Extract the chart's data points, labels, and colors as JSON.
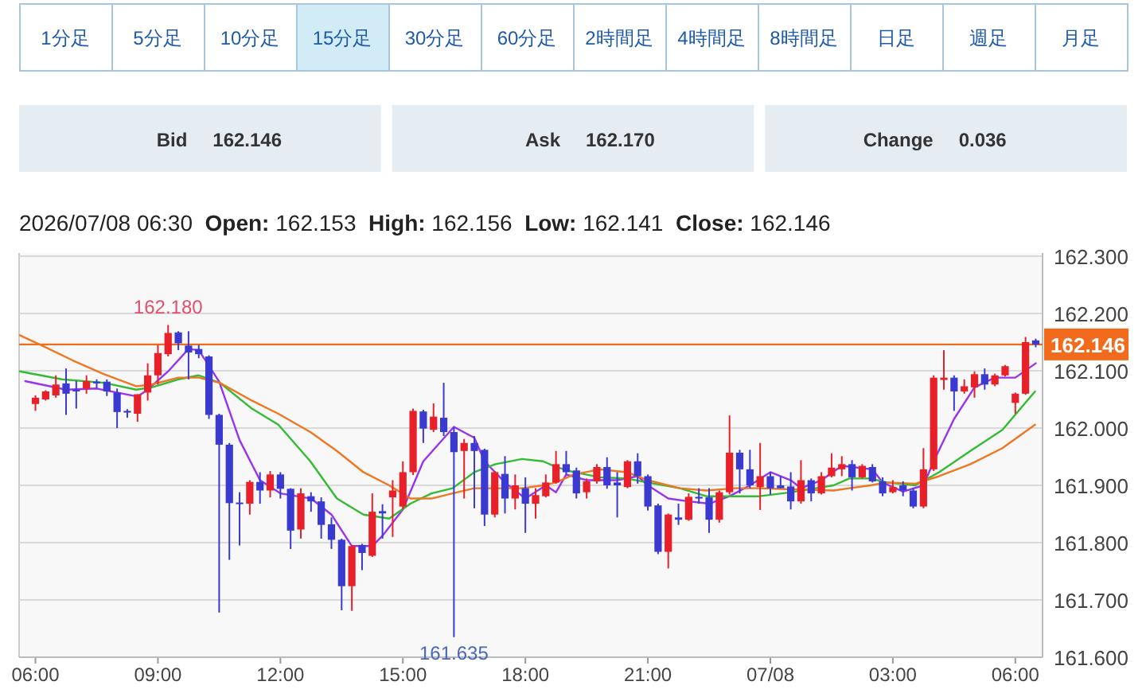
{
  "chart_data": {
    "type": "candlestick",
    "title": "2026/07/08 06:30  **Open:** 162.153  **High:** 162.156  **Low:** 162.141  **Close:** 162.146",
    "annotations": [
      "1分足",
      "5分足",
      "10分足",
      "15分足",
      "30分足",
      "60分足",
      "2時間足",
      "4時間足",
      "8時間足",
      "日足",
      "週足",
      "月足",
      "Bid",
      "162.146",
      "Ask",
      "162.170",
      "Change",
      "0.036",
      {
        "text": "162.180",
        "x": "2026-07-07T09:15",
        "y": 162.18
      },
      {
        "text": "161.635",
        "x": "2026-07-07T16:15",
        "y": 161.635
      }
    ],
    "x": [
      "2026-07-07T06:00",
      "2026-07-07T06:15",
      "2026-07-07T06:30",
      "2026-07-07T06:45",
      "2026-07-07T07:00",
      "2026-07-07T07:15",
      "2026-07-07T07:30",
      "2026-07-07T07:45",
      "2026-07-07T08:00",
      "2026-07-07T08:15",
      "2026-07-07T08:30",
      "2026-07-07T08:45",
      "2026-07-07T09:00",
      "2026-07-07T09:15",
      "2026-07-07T09:30",
      "2026-07-07T09:45",
      "2026-07-07T10:00",
      "2026-07-07T10:15",
      "2026-07-07T10:30",
      "2026-07-07T10:45",
      "2026-07-07T11:00",
      "2026-07-07T11:15",
      "2026-07-07T11:30",
      "2026-07-07T11:45",
      "2026-07-07T12:00",
      "2026-07-07T12:15",
      "2026-07-07T12:30",
      "2026-07-07T12:45",
      "2026-07-07T13:00",
      "2026-07-07T13:15",
      "2026-07-07T13:30",
      "2026-07-07T13:45",
      "2026-07-07T14:00",
      "2026-07-07T14:15",
      "2026-07-07T14:30",
      "2026-07-07T14:45",
      "2026-07-07T15:00",
      "2026-07-07T15:15",
      "2026-07-07T15:30",
      "2026-07-07T15:45",
      "2026-07-07T16:00",
      "2026-07-07T16:15",
      "2026-07-07T16:30",
      "2026-07-07T16:45",
      "2026-07-07T17:00",
      "2026-07-07T17:15",
      "2026-07-07T17:30",
      "2026-07-07T17:45",
      "2026-07-07T18:00",
      "2026-07-07T18:15",
      "2026-07-07T18:30",
      "2026-07-07T18:45",
      "2026-07-07T19:00",
      "2026-07-07T19:15",
      "2026-07-07T19:30",
      "2026-07-07T19:45",
      "2026-07-07T20:00",
      "2026-07-07T20:15",
      "2026-07-07T20:30",
      "2026-07-07T20:45",
      "2026-07-07T21:00",
      "2026-07-07T21:15",
      "2026-07-07T21:30",
      "2026-07-07T21:45",
      "2026-07-07T22:00",
      "2026-07-07T22:15",
      "2026-07-07T22:30",
      "2026-07-07T22:45",
      "2026-07-07T23:00",
      "2026-07-07T23:15",
      "2026-07-07T23:30",
      "2026-07-07T23:45",
      "2026-07-08T00:00",
      "2026-07-08T00:15",
      "2026-07-08T00:30",
      "2026-07-08T00:45",
      "2026-07-08T01:00",
      "2026-07-08T01:15",
      "2026-07-08T01:30",
      "2026-07-08T01:45",
      "2026-07-08T02:00",
      "2026-07-08T02:15",
      "2026-07-08T02:30",
      "2026-07-08T02:45",
      "2026-07-08T03:00",
      "2026-07-08T03:15",
      "2026-07-08T03:30",
      "2026-07-08T03:45",
      "2026-07-08T04:00",
      "2026-07-08T04:15",
      "2026-07-08T04:30",
      "2026-07-08T04:45",
      "2026-07-08T05:00",
      "2026-07-08T05:15",
      "2026-07-08T05:30",
      "2026-07-08T05:45",
      "2026-07-08T06:00",
      "2026-07-08T06:15",
      "2026-07-08T06:30"
    ],
    "ohlc": [
      [
        162.042,
        162.057,
        162.03,
        162.053
      ],
      [
        162.05,
        162.066,
        162.048,
        162.064
      ],
      [
        162.057,
        162.092,
        162.053,
        162.076
      ],
      [
        162.078,
        162.104,
        162.023,
        162.06
      ],
      [
        162.067,
        162.082,
        162.034,
        162.064
      ],
      [
        162.069,
        162.092,
        162.06,
        162.082
      ],
      [
        162.081,
        162.085,
        162.069,
        162.078
      ],
      [
        162.081,
        162.085,
        162.056,
        162.064
      ],
      [
        162.062,
        162.069,
        162.0,
        162.028
      ],
      [
        162.03,
        162.033,
        162.018,
        162.027
      ],
      [
        162.025,
        162.059,
        162.011,
        162.059
      ],
      [
        162.062,
        162.113,
        162.048,
        162.092
      ],
      [
        162.092,
        162.145,
        162.076,
        162.131
      ],
      [
        162.129,
        162.18,
        162.125,
        162.166
      ],
      [
        162.167,
        162.169,
        162.136,
        162.148
      ],
      [
        162.144,
        162.169,
        162.085,
        162.132
      ],
      [
        162.138,
        162.145,
        162.122,
        162.129
      ],
      [
        162.125,
        162.127,
        162.016,
        162.023
      ],
      [
        162.023,
        162.025,
        161.678,
        161.971
      ],
      [
        161.971,
        161.974,
        161.77,
        161.869
      ],
      [
        161.87,
        161.888,
        161.795,
        161.869
      ],
      [
        161.868,
        161.909,
        161.849,
        161.906
      ],
      [
        161.906,
        161.923,
        161.868,
        161.891
      ],
      [
        161.891,
        161.925,
        161.879,
        161.919
      ],
      [
        161.919,
        161.923,
        161.877,
        161.894
      ],
      [
        161.894,
        161.895,
        161.789,
        161.821
      ],
      [
        161.823,
        161.895,
        161.807,
        161.886
      ],
      [
        161.881,
        161.888,
        161.854,
        161.872
      ],
      [
        161.872,
        161.879,
        161.807,
        161.831
      ],
      [
        161.832,
        161.844,
        161.789,
        161.805
      ],
      [
        161.805,
        161.807,
        161.682,
        161.724
      ],
      [
        161.724,
        161.796,
        161.681,
        161.794
      ],
      [
        161.796,
        161.798,
        161.752,
        161.782
      ],
      [
        161.777,
        161.886,
        161.775,
        161.854
      ],
      [
        161.855,
        161.867,
        161.807,
        161.851
      ],
      [
        161.879,
        161.909,
        161.81,
        161.891
      ],
      [
        161.863,
        161.942,
        161.858,
        161.923
      ],
      [
        161.923,
        162.034,
        161.918,
        162.03
      ],
      [
        162.029,
        162.032,
        161.974,
        161.999
      ],
      [
        161.997,
        162.043,
        161.993,
        162.02
      ],
      [
        162.018,
        162.079,
        161.986,
        161.993
      ],
      [
        161.993,
        162.002,
        161.635,
        161.958
      ],
      [
        161.96,
        161.981,
        161.877,
        161.974
      ],
      [
        161.974,
        161.986,
        161.86,
        161.96
      ],
      [
        161.962,
        161.964,
        161.829,
        161.849
      ],
      [
        161.849,
        161.925,
        161.844,
        161.923
      ],
      [
        161.92,
        161.951,
        161.851,
        161.877
      ],
      [
        161.877,
        161.919,
        161.858,
        161.9
      ],
      [
        161.895,
        161.914,
        161.817,
        161.868
      ],
      [
        161.868,
        161.895,
        161.842,
        161.883
      ],
      [
        161.881,
        161.919,
        161.879,
        161.905
      ],
      [
        161.905,
        161.96,
        161.903,
        161.937
      ],
      [
        161.937,
        161.96,
        161.919,
        161.923
      ],
      [
        161.926,
        161.931,
        161.877,
        161.886
      ],
      [
        161.888,
        161.912,
        161.877,
        161.907
      ],
      [
        161.907,
        161.937,
        161.903,
        161.932
      ],
      [
        161.932,
        161.949,
        161.894,
        161.9
      ],
      [
        161.905,
        161.923,
        161.844,
        161.9
      ],
      [
        161.897,
        161.944,
        161.895,
        161.942
      ],
      [
        161.942,
        161.956,
        161.903,
        161.916
      ],
      [
        161.916,
        161.919,
        161.856,
        161.863
      ],
      [
        161.865,
        161.868,
        161.78,
        161.784
      ],
      [
        161.784,
        161.851,
        161.755,
        161.849
      ],
      [
        161.844,
        161.868,
        161.831,
        161.84
      ],
      [
        161.84,
        161.886,
        161.838,
        161.88
      ],
      [
        161.88,
        161.895,
        161.868,
        161.877
      ],
      [
        161.879,
        161.895,
        161.817,
        161.84
      ],
      [
        161.84,
        161.891,
        161.835,
        161.888
      ],
      [
        161.888,
        162.022,
        161.884,
        161.957
      ],
      [
        161.957,
        161.962,
        161.886,
        161.928
      ],
      [
        161.928,
        161.962,
        161.895,
        161.9
      ],
      [
        161.897,
        161.974,
        161.857,
        161.916
      ],
      [
        161.916,
        161.923,
        161.884,
        161.895
      ],
      [
        161.9,
        161.916,
        161.895,
        161.895
      ],
      [
        161.898,
        161.923,
        161.858,
        161.872
      ],
      [
        161.872,
        161.944,
        161.868,
        161.909
      ],
      [
        161.909,
        161.912,
        161.872,
        161.886
      ],
      [
        161.886,
        161.923,
        161.884,
        161.916
      ],
      [
        161.916,
        161.956,
        161.914,
        161.931
      ],
      [
        161.928,
        161.951,
        161.916,
        161.937
      ],
      [
        161.937,
        161.944,
        161.891,
        161.914
      ],
      [
        161.914,
        161.937,
        161.912,
        161.934
      ],
      [
        161.932,
        161.937,
        161.905,
        161.907
      ],
      [
        161.907,
        161.914,
        161.881,
        161.886
      ],
      [
        161.888,
        161.909,
        161.886,
        161.897
      ],
      [
        161.9,
        161.907,
        161.881,
        161.891
      ],
      [
        161.891,
        161.895,
        161.86,
        161.863
      ],
      [
        161.863,
        161.965,
        161.86,
        161.928
      ],
      [
        161.928,
        162.092,
        161.925,
        162.088
      ],
      [
        162.084,
        162.136,
        162.067,
        162.088
      ],
      [
        162.088,
        162.092,
        162.03,
        162.064
      ],
      [
        162.064,
        162.085,
        162.06,
        162.073
      ],
      [
        162.071,
        162.099,
        162.053,
        162.094
      ],
      [
        162.094,
        162.104,
        162.067,
        162.076
      ],
      [
        162.076,
        162.095,
        162.073,
        162.092
      ],
      [
        162.092,
        162.11,
        162.09,
        162.108
      ],
      [
        162.044,
        162.062,
        162.025,
        162.06
      ],
      [
        162.06,
        162.159,
        162.058,
        162.15
      ],
      [
        162.153,
        162.156,
        162.141,
        162.146
      ]
    ],
    "series": [
      {
        "type": "line",
        "color": "#9933ee",
        "x": [
          "2026-07-07T05:45",
          "2026-07-07T06:45",
          "2026-07-07T07:30",
          "2026-07-07T08:00",
          "2026-07-07T08:30",
          "2026-07-07T08:45",
          "2026-07-07T09:15",
          "2026-07-07T09:45",
          "2026-07-07T10:00",
          "2026-07-07T10:30",
          "2026-07-07T11:00",
          "2026-07-07T11:30",
          "2026-07-07T12:00",
          "2026-07-07T12:45",
          "2026-07-07T13:15",
          "2026-07-07T13:45",
          "2026-07-07T14:15",
          "2026-07-07T14:30",
          "2026-07-07T15:00",
          "2026-07-07T15:30",
          "2026-07-07T16:15",
          "2026-07-07T16:45",
          "2026-07-07T17:00",
          "2026-07-07T17:30",
          "2026-07-07T18:00",
          "2026-07-07T18:30",
          "2026-07-07T18:45",
          "2026-07-07T19:00",
          "2026-07-07T19:30",
          "2026-07-07T20:15",
          "2026-07-07T20:45",
          "2026-07-07T21:00",
          "2026-07-07T21:30",
          "2026-07-07T22:00",
          "2026-07-07T22:30",
          "2026-07-07T23:00",
          "2026-07-07T23:30",
          "2026-07-08T00:00",
          "2026-07-08T00:30",
          "2026-07-08T00:45",
          "2026-07-08T01:15",
          "2026-07-08T01:45",
          "2026-07-08T02:30",
          "2026-07-08T02:45",
          "2026-07-08T03:15",
          "2026-07-08T03:45",
          "2026-07-08T04:00",
          "2026-07-08T04:30",
          "2026-07-08T05:00",
          "2026-07-08T05:30",
          "2026-07-08T06:00",
          "2026-07-08T06:30"
        ],
        "values": [
          162.082,
          162.067,
          162.069,
          162.062,
          162.055,
          162.067,
          162.099,
          162.138,
          162.136,
          162.081,
          161.979,
          161.909,
          161.886,
          161.877,
          161.849,
          161.794,
          161.794,
          161.812,
          161.858,
          161.942,
          162.002,
          161.983,
          161.942,
          161.905,
          161.877,
          161.9,
          161.888,
          161.919,
          161.909,
          161.909,
          161.916,
          161.9,
          161.877,
          161.872,
          161.868,
          161.881,
          161.9,
          161.923,
          161.909,
          161.895,
          161.909,
          161.934,
          161.928,
          161.905,
          161.889,
          161.9,
          161.942,
          162.016,
          162.071,
          162.088,
          162.088,
          162.113
        ]
      },
      {
        "type": "line",
        "color": "#33bb33",
        "x": [
          "2026-07-07T05:37",
          "2026-07-07T06:39",
          "2026-07-07T07:41",
          "2026-07-07T08:28",
          "2026-07-07T08:51",
          "2026-07-07T09:30",
          "2026-07-07T10:00",
          "2026-07-07T10:31",
          "2026-07-07T11:18",
          "2026-07-07T11:57",
          "2026-07-07T12:44",
          "2026-07-07T13:23",
          "2026-07-07T14:02",
          "2026-07-07T14:40",
          "2026-07-07T15:11",
          "2026-07-07T15:42",
          "2026-07-07T16:13",
          "2026-07-07T16:45",
          "2026-07-07T17:16",
          "2026-07-07T17:55",
          "2026-07-07T18:26",
          "2026-07-07T18:45",
          "2026-07-07T19:11",
          "2026-07-07T19:50",
          "2026-07-07T20:29",
          "2026-07-07T21:00",
          "2026-07-07T21:47",
          "2026-07-07T22:26",
          "2026-07-07T23:08",
          "2026-07-07T23:44",
          "2026-07-08T00:31",
          "2026-07-08T01:33",
          "2026-07-08T01:56",
          "2026-07-08T02:27",
          "2026-07-08T02:51",
          "2026-07-08T03:33",
          "2026-07-08T04:08",
          "2026-07-08T04:54",
          "2026-07-08T05:41",
          "2026-07-08T06:29"
        ],
        "values": [
          162.099,
          162.085,
          162.079,
          162.067,
          162.071,
          162.085,
          162.092,
          162.079,
          162.034,
          162.006,
          161.942,
          161.877,
          161.849,
          161.842,
          161.868,
          161.886,
          161.895,
          161.923,
          161.937,
          161.946,
          161.942,
          161.932,
          161.923,
          161.914,
          161.912,
          161.905,
          161.895,
          161.881,
          161.881,
          161.881,
          161.888,
          161.9,
          161.912,
          161.912,
          161.905,
          161.9,
          161.923,
          161.96,
          161.997,
          162.064
        ]
      },
      {
        "type": "line",
        "color": "#ee7722",
        "x": [
          "2026-07-07T05:37",
          "2026-07-07T06:08",
          "2026-07-07T06:55",
          "2026-07-07T07:41",
          "2026-07-07T08:28",
          "2026-07-07T08:51",
          "2026-07-07T09:30",
          "2026-07-07T10:00",
          "2026-07-07T10:31",
          "2026-07-07T11:18",
          "2026-07-07T11:57",
          "2026-07-07T12:44",
          "2026-07-07T13:23",
          "2026-07-07T14:02",
          "2026-07-07T14:40",
          "2026-07-07T15:11",
          "2026-07-07T15:42",
          "2026-07-07T16:13",
          "2026-07-07T16:45",
          "2026-07-07T17:16",
          "2026-07-07T17:55",
          "2026-07-07T18:26",
          "2026-07-07T18:45",
          "2026-07-07T19:11",
          "2026-07-07T19:50",
          "2026-07-07T20:29",
          "2026-07-07T21:00",
          "2026-07-07T21:47",
          "2026-07-07T22:26",
          "2026-07-07T23:08",
          "2026-07-07T23:44",
          "2026-07-08T00:31",
          "2026-07-08T01:33",
          "2026-07-08T01:56",
          "2026-07-08T02:27",
          "2026-07-08T02:51",
          "2026-07-08T03:33",
          "2026-07-08T04:08",
          "2026-07-08T04:54",
          "2026-07-08T05:41",
          "2026-07-08T06:29"
        ],
        "values": [
          162.162,
          162.145,
          162.118,
          162.094,
          162.073,
          162.076,
          162.088,
          162.088,
          162.079,
          162.048,
          162.025,
          161.993,
          161.96,
          161.923,
          161.9,
          161.877,
          161.877,
          161.886,
          161.895,
          161.895,
          161.895,
          161.9,
          161.905,
          161.919,
          161.928,
          161.923,
          161.909,
          161.895,
          161.891,
          161.895,
          161.895,
          161.893,
          161.891,
          161.895,
          161.9,
          161.905,
          161.903,
          161.916,
          161.937,
          161.965,
          162.006
        ]
      }
    ],
    "xlim": [
      "2026-07-07T05:36",
      "2026-07-08T06:40"
    ],
    "ylim": [
      161.6,
      162.3
    ],
    "xticks": [
      {
        "value": "2026-07-07T06:00",
        "label": "06:00"
      },
      {
        "value": "2026-07-07T09:00",
        "label": "09:00"
      },
      {
        "value": "2026-07-07T12:00",
        "label": "12:00"
      },
      {
        "value": "2026-07-07T15:00",
        "label": "15:00"
      },
      {
        "value": "2026-07-07T18:00",
        "label": "18:00"
      },
      {
        "value": "2026-07-07T21:00",
        "label": "21:00"
      },
      {
        "value": "2026-07-08T00:00",
        "label": "07/08"
      },
      {
        "value": "2026-07-08T03:00",
        "label": "03:00"
      },
      {
        "value": "2026-07-08T06:00",
        "label": "06:00"
      }
    ],
    "yticks": [
      {
        "value": 161.6,
        "label": "161.600"
      },
      {
        "value": 161.7,
        "label": "161.700"
      },
      {
        "value": 161.8,
        "label": "161.800"
      },
      {
        "value": 161.9,
        "label": "161.900"
      },
      {
        "value": 162.0,
        "label": "162.000"
      },
      {
        "value": 162.1,
        "label": "162.100"
      },
      {
        "value": 162.2,
        "label": "162.200"
      },
      {
        "value": 162.3,
        "label": "162.300"
      }
    ],
    "grid": "y",
    "ref_lines": [
      {
        "axis": "y",
        "value": 162.146,
        "label": "162.146",
        "color": "#f26b1d"
      }
    ]
  }
}
